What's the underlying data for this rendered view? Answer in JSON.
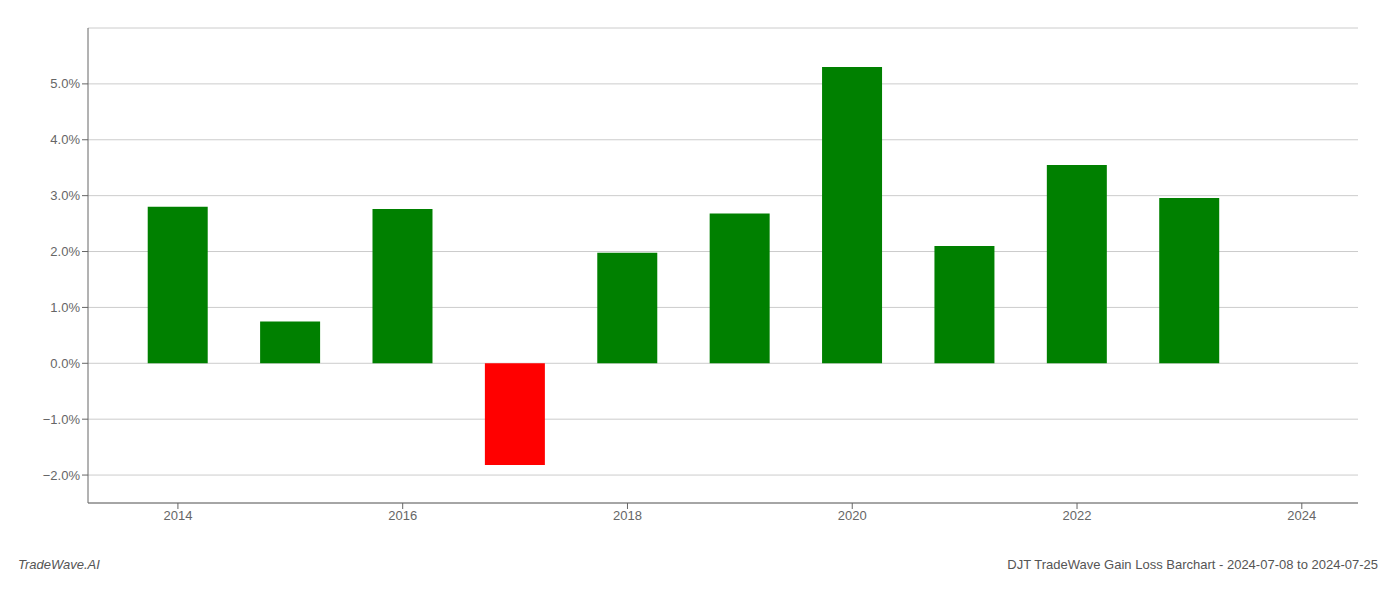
{
  "chart_data": {
    "type": "bar",
    "x": [
      2014,
      2015,
      2016,
      2017,
      2018,
      2019,
      2020,
      2021,
      2022,
      2023
    ],
    "values": [
      2.8,
      0.75,
      2.76,
      -1.82,
      1.98,
      2.68,
      5.3,
      2.1,
      3.55,
      2.96
    ],
    "colors": [
      "#008000",
      "#008000",
      "#008000",
      "#ff0000",
      "#008000",
      "#008000",
      "#008000",
      "#008000",
      "#008000",
      "#008000"
    ],
    "xlim": [
      2013.2,
      2024.5
    ],
    "xticks": [
      2014,
      2016,
      2018,
      2020,
      2022,
      2024
    ],
    "ylim": [
      -2.5,
      6.0
    ],
    "yticks": [
      {
        "value": -2.0,
        "label": "−2.0%"
      },
      {
        "value": -1.0,
        "label": "−1.0%"
      },
      {
        "value": 0.0,
        "label": "0.0%"
      },
      {
        "value": 1.0,
        "label": "1.0%"
      },
      {
        "value": 2.0,
        "label": "2.0%"
      },
      {
        "value": 3.0,
        "label": "3.0%"
      },
      {
        "value": 4.0,
        "label": "4.0%"
      },
      {
        "value": 5.0,
        "label": "5.0%"
      }
    ],
    "grid": true,
    "annotations": [
      "TradeWave.AI",
      "DJT TradeWave Gain Loss Barchart - 2024-07-08 to 2024-07-25"
    ]
  }
}
